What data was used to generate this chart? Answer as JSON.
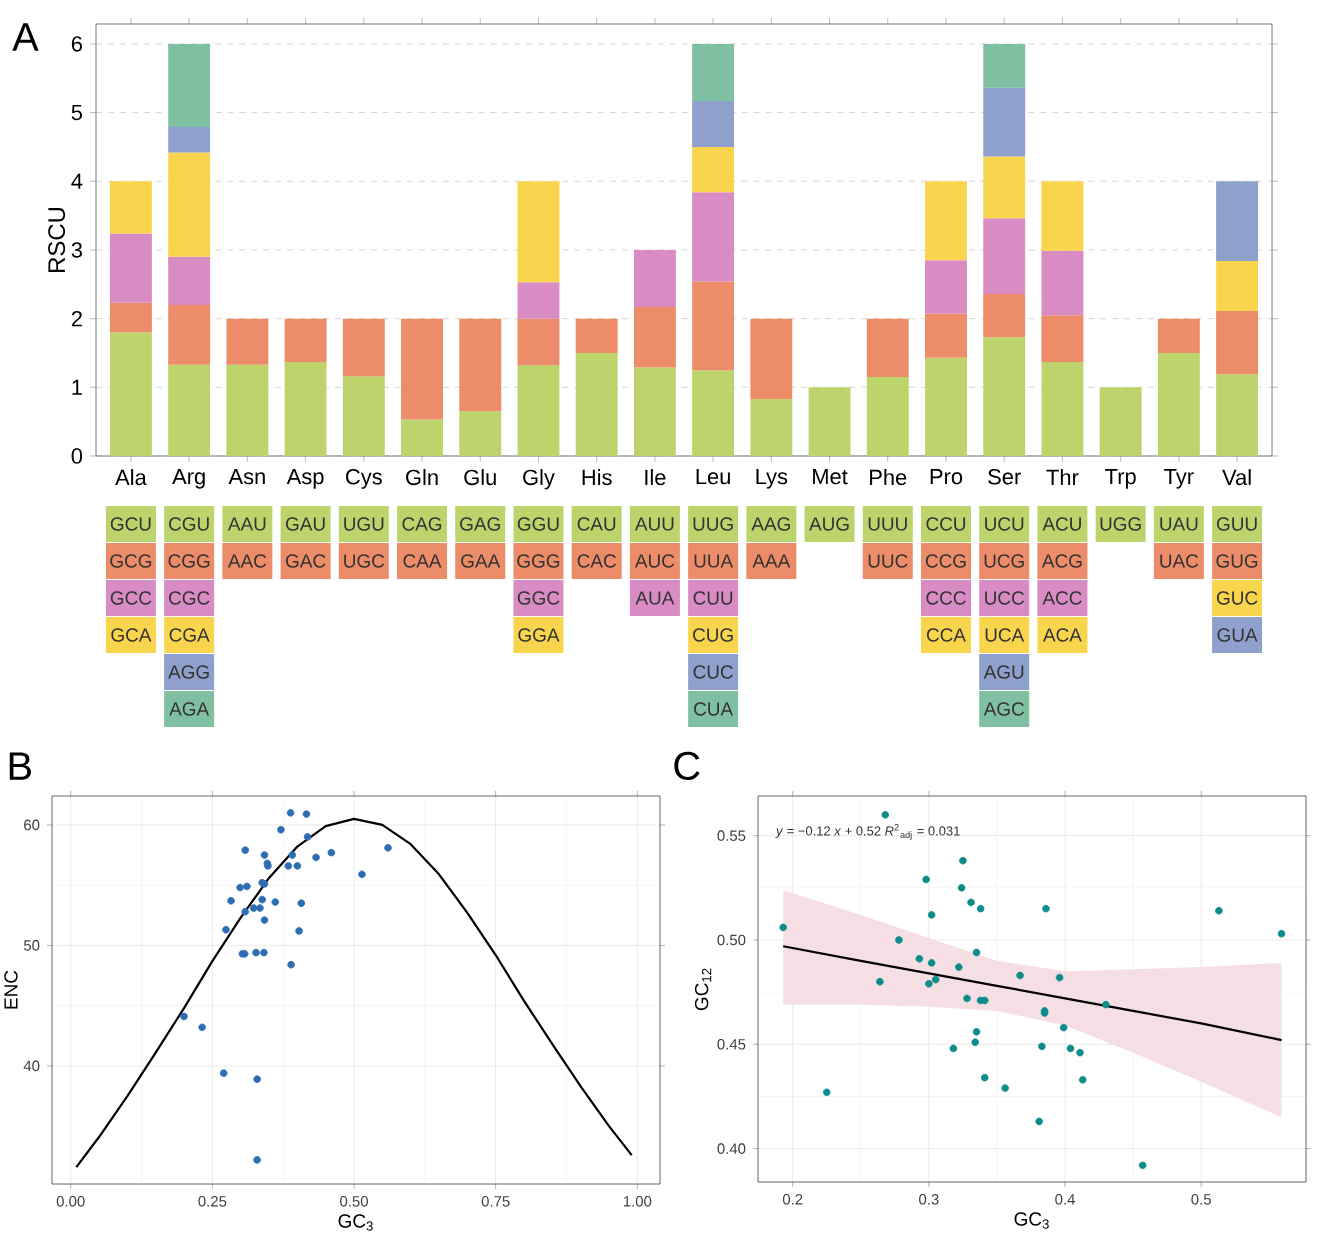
{
  "chart_data": [
    {
      "type": "bar",
      "title": "A",
      "ylabel": "RSCU",
      "annotations": [
        "GCU",
        "GCG",
        "GCC",
        "GCA",
        "CGU",
        "CGG",
        "CGC",
        "CGA",
        "AGG",
        "AGA",
        "AAU",
        "AAC",
        "GAU",
        "GAC",
        "UGU",
        "UGC",
        "CAG",
        "CAA",
        "GAG",
        "GAA",
        "GGU",
        "GGG",
        "GGC",
        "GGA",
        "CAU",
        "CAC",
        "AUU",
        "AUC",
        "AUA",
        "UUG",
        "UUA",
        "CUU",
        "CUG",
        "CUC",
        "CUA",
        "AAG",
        "AAA",
        "AUG",
        "UUU",
        "UUC",
        "CCU",
        "CCG",
        "CCC",
        "CCA",
        "UCU",
        "UCG",
        "UCC",
        "UCA",
        "AGU",
        "AGC",
        "ACU",
        "ACG",
        "ACC",
        "ACA",
        "UGG",
        "UAU",
        "UAC",
        "GUU",
        "GUG",
        "GUC",
        "GUA"
      ],
      "stacked": true,
      "grid": "y",
      "ylim": [
        0,
        6.29
      ],
      "yticks": [
        0,
        1,
        2,
        3,
        4,
        5,
        6
      ],
      "categories": [
        "Ala",
        "Arg",
        "Asn",
        "Asp",
        "Cys",
        "Gln",
        "Glu",
        "Gly",
        "His",
        "Ile",
        "Leu",
        "Lys",
        "Met",
        "Phe",
        "Pro",
        "Ser",
        "Thr",
        "Trp",
        "Tyr",
        "Val"
      ],
      "series": [
        {
          "color": "#bdd46d",
          "values": [
            1.8,
            1.33,
            1.33,
            1.37,
            1.16,
            0.53,
            0.65,
            1.32,
            1.5,
            1.29,
            1.25,
            0.83,
            1,
            1.15,
            1.43,
            1.73,
            1.37,
            1,
            1.5,
            1.19
          ]
        },
        {
          "color": "#ec8c69",
          "values": [
            0.43,
            0.87,
            0.67,
            0.63,
            0.84,
            1.47,
            1.35,
            0.68,
            0.5,
            0.88,
            1.29,
            1.17,
            null,
            0.85,
            0.64,
            0.63,
            0.68,
            null,
            0.5,
            0.92
          ]
        },
        {
          "color": "#d98cc4",
          "values": [
            1.01,
            0.7,
            null,
            null,
            null,
            null,
            null,
            0.53,
            null,
            0.83,
            1.3,
            null,
            null,
            null,
            0.78,
            1.1,
            0.94,
            null,
            null,
            null
          ]
        },
        {
          "color": "#f9d54e",
          "values": [
            0.76,
            1.52,
            null,
            null,
            null,
            null,
            null,
            1.47,
            null,
            null,
            0.66,
            null,
            null,
            null,
            1.15,
            0.9,
            1.01,
            null,
            null,
            0.73
          ]
        },
        {
          "color": "#8ea0cb",
          "values": [
            null,
            0.37,
            null,
            null,
            null,
            null,
            null,
            null,
            null,
            null,
            0.67,
            null,
            null,
            null,
            null,
            1.0,
            null,
            null,
            null,
            1.16
          ]
        },
        {
          "color": "#80c0a2",
          "values": [
            null,
            1.21,
            null,
            null,
            null,
            null,
            null,
            null,
            null,
            null,
            0.83,
            null,
            null,
            null,
            null,
            0.64,
            null,
            null,
            null,
            null
          ]
        }
      ]
    },
    {
      "type": "scatter",
      "title": "B",
      "xlabel": "GC$_{3}$",
      "ylabel": "ENC",
      "grid": true,
      "xlim": [
        -0.033,
        1.04
      ],
      "ylim": [
        30.2,
        62.4
      ],
      "xticks": [
        {
          "value": 0,
          "label": "0.00"
        },
        {
          "value": 0.25,
          "label": "0.25"
        },
        {
          "value": 0.5,
          "label": "0.50"
        },
        {
          "value": 0.75,
          "label": "0.75"
        },
        {
          "value": 1,
          "label": "1.00"
        }
      ],
      "yticks": [
        40,
        50,
        60
      ],
      "series": [
        {
          "type": "scatter",
          "marker": "circle",
          "color": "#2e6db4",
          "x": [
            0.388,
            0.416,
            0.371,
            0.418,
            0.56,
            0.308,
            0.342,
            0.391,
            0.46,
            0.433,
            0.347,
            0.348,
            0.384,
            0.4,
            0.514,
            0.338,
            0.342,
            0.299,
            0.311,
            0.283,
            0.338,
            0.361,
            0.407,
            0.323,
            0.334,
            0.308,
            0.342,
            0.274,
            0.403,
            0.303,
            0.307,
            0.327,
            0.341,
            0.389,
            0.2,
            0.232,
            0.27,
            0.329,
            0.329
          ],
          "values": [
            61.0,
            60.9,
            59.6,
            59.0,
            58.1,
            57.9,
            57.5,
            57.5,
            57.7,
            57.3,
            56.8,
            56.6,
            56.6,
            56.6,
            55.9,
            55.2,
            55.1,
            54.8,
            54.9,
            53.7,
            53.8,
            53.6,
            53.5,
            53.1,
            53.1,
            52.8,
            52.1,
            51.3,
            51.2,
            49.3,
            49.3,
            49.4,
            49.4,
            48.4,
            44.1,
            43.2,
            39.4,
            38.9,
            32.2
          ]
        },
        {
          "type": "line",
          "marker": "none",
          "color": "#000000",
          "x": [
            0.01,
            0.05,
            0.1,
            0.15,
            0.2,
            0.25,
            0.3,
            0.35,
            0.4,
            0.45,
            0.5,
            0.55,
            0.6,
            0.65,
            0.7,
            0.75,
            0.8,
            0.85,
            0.9,
            0.95,
            0.99
          ],
          "values": [
            31.6,
            34.1,
            37.5,
            41.1,
            44.8,
            48.7,
            52.3,
            55.6,
            58.2,
            59.9,
            60.5,
            60.0,
            58.4,
            55.9,
            52.7,
            49.2,
            45.4,
            41.8,
            38.3,
            35.0,
            32.6
          ]
        }
      ]
    },
    {
      "type": "scatter",
      "title": "C",
      "xlabel": "GC$_{3}$",
      "ylabel": "GC$_{12}$",
      "grid": true,
      "xlim": [
        0.1745,
        0.577
      ],
      "ylim": [
        0.384,
        0.569
      ],
      "xticks": [
        0.2,
        0.3,
        0.4,
        0.5
      ],
      "yticks": [
        {
          "value": 0.4,
          "label": "0.40"
        },
        {
          "value": 0.45,
          "label": "0.45"
        },
        {
          "value": 0.5,
          "label": "0.50"
        },
        {
          "value": 0.55,
          "label": "0.55"
        }
      ],
      "annotations": [
        "*y* = −0.12 *x* + 0.52    *R*$^{2}$$_{adj}$ = 0.031"
      ],
      "series": [
        {
          "type": "scatter",
          "marker": "circle",
          "color": "#0e8c8c",
          "x": [
            0.268,
            0.325,
            0.298,
            0.324,
            0.331,
            0.338,
            0.386,
            0.513,
            0.302,
            0.193,
            0.559,
            0.278,
            0.335,
            0.293,
            0.302,
            0.322,
            0.367,
            0.396,
            0.264,
            0.3,
            0.305,
            0.328,
            0.338,
            0.341,
            0.43,
            0.385,
            0.385,
            0.399,
            0.335,
            0.334,
            0.318,
            0.404,
            0.411,
            0.383,
            0.341,
            0.413,
            0.356,
            0.225,
            0.381,
            0.457
          ],
          "values": [
            0.56,
            0.538,
            0.529,
            0.525,
            0.518,
            0.515,
            0.515,
            0.514,
            0.512,
            0.506,
            0.503,
            0.5,
            0.494,
            0.491,
            0.489,
            0.487,
            0.483,
            0.482,
            0.48,
            0.479,
            0.481,
            0.472,
            0.471,
            0.471,
            0.469,
            0.466,
            0.465,
            0.458,
            0.456,
            0.451,
            0.448,
            0.448,
            0.446,
            0.449,
            0.434,
            0.433,
            0.429,
            0.427,
            0.413,
            0.392
          ]
        },
        {
          "type": "line",
          "marker": "none",
          "color": "#000000",
          "x": [
            0.193,
            0.25,
            0.3,
            0.35,
            0.4,
            0.45,
            0.5,
            0.559
          ],
          "values": [
            0.497,
            0.49,
            0.484,
            0.478,
            0.472,
            0.466,
            0.46,
            0.452
          ],
          "lower": [
            0.469,
            0.469,
            0.468,
            0.466,
            0.459,
            0.446,
            0.432,
            0.415
          ],
          "upper": [
            0.524,
            0.512,
            0.501,
            0.49,
            0.485,
            0.486,
            0.487,
            0.489
          ]
        }
      ]
    }
  ]
}
